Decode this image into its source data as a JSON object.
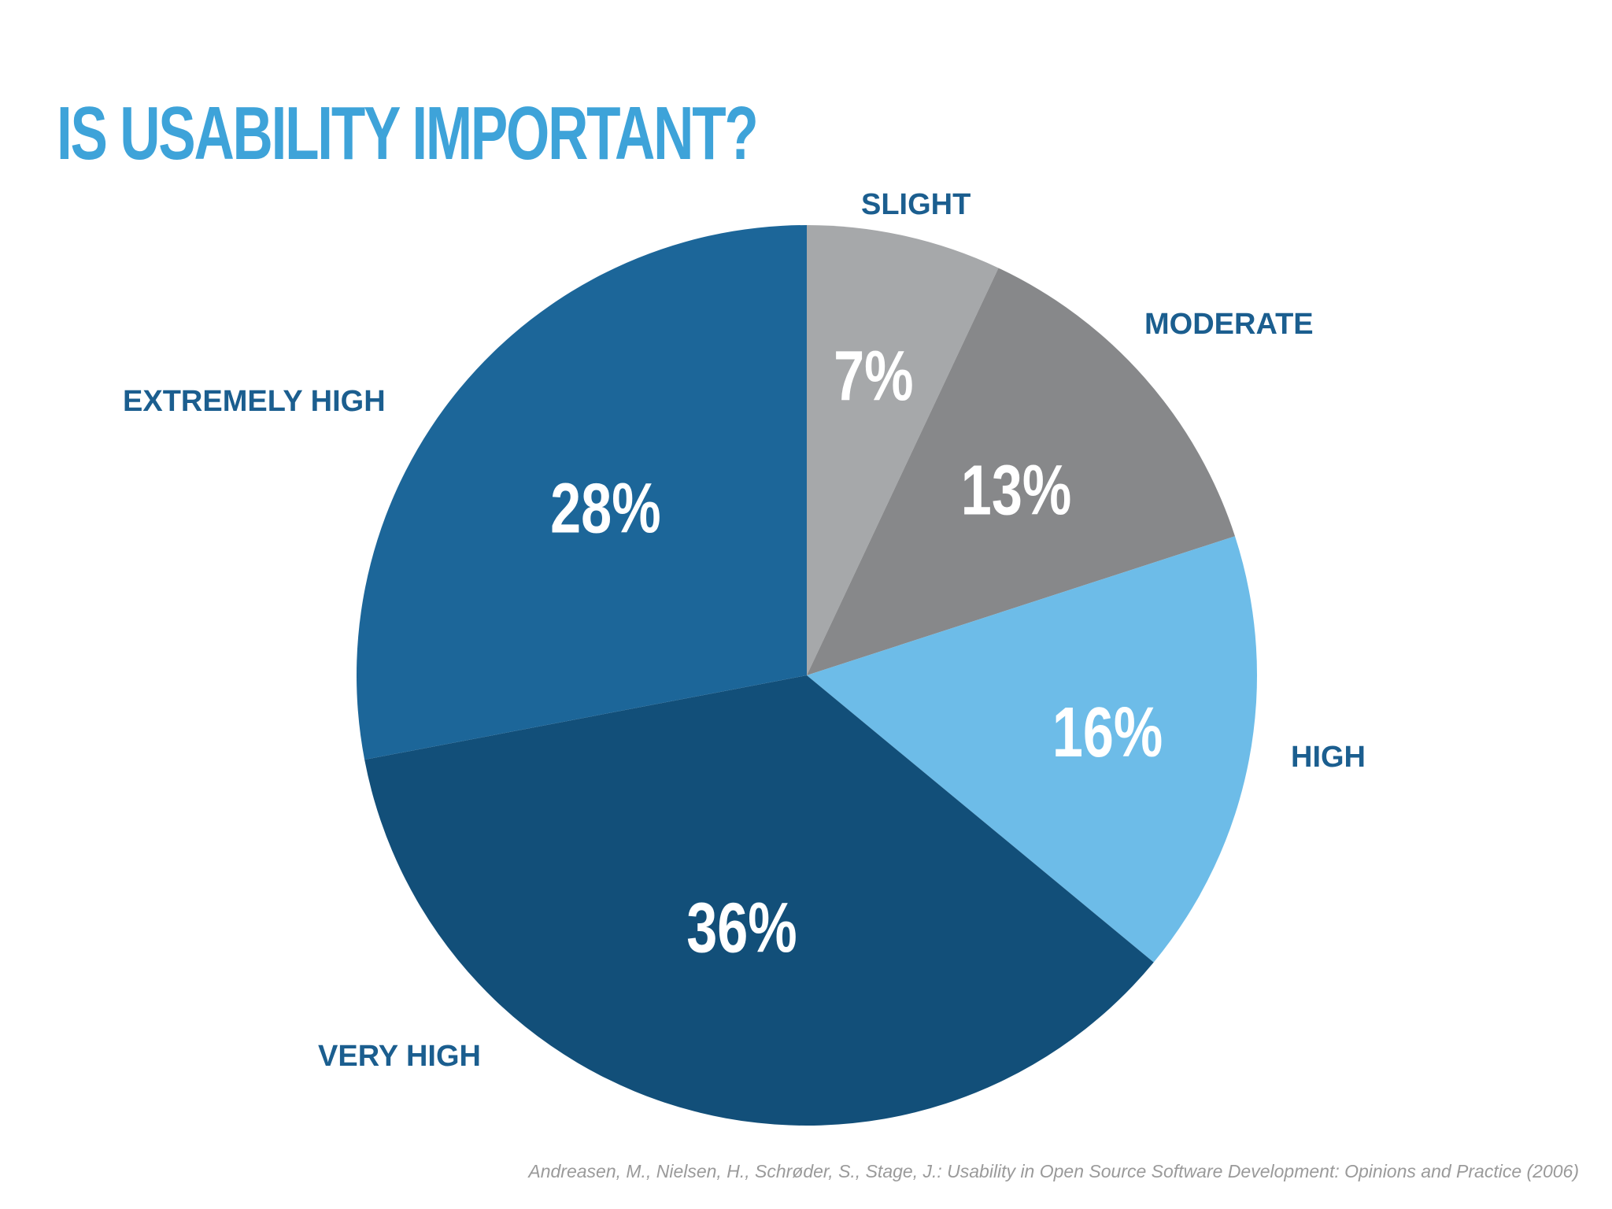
{
  "title": "IS USABILITY IMPORTANT?",
  "source": "Andreasen, M., Nielsen, H., Schrøder, S., Stage, J.: Usability in Open Source Software Development: Opinions and Practice  (2006)",
  "colors": {
    "title": "#3ea3d9",
    "category_label": "#1b5e8f",
    "value_label": "#ffffff",
    "source": "#9a9a9a"
  },
  "chart_data": {
    "type": "pie",
    "title": "IS USABILITY IMPORTANT?",
    "start": "12 o'clock",
    "direction": "clockwise",
    "slices": [
      {
        "label": "SLIGHT",
        "value": 7,
        "value_label": "7%",
        "color": "#a6a8aa"
      },
      {
        "label": "MODERATE",
        "value": 13,
        "value_label": "13%",
        "color": "#87888a"
      },
      {
        "label": "HIGH",
        "value": 16,
        "value_label": "16%",
        "color": "#6dbce8"
      },
      {
        "label": "VERY HIGH",
        "value": 36,
        "value_label": "36%",
        "color": "#124f79"
      },
      {
        "label": "EXTREMELY HIGH",
        "value": 28,
        "value_label": "28%",
        "color": "#1c6699"
      }
    ]
  }
}
